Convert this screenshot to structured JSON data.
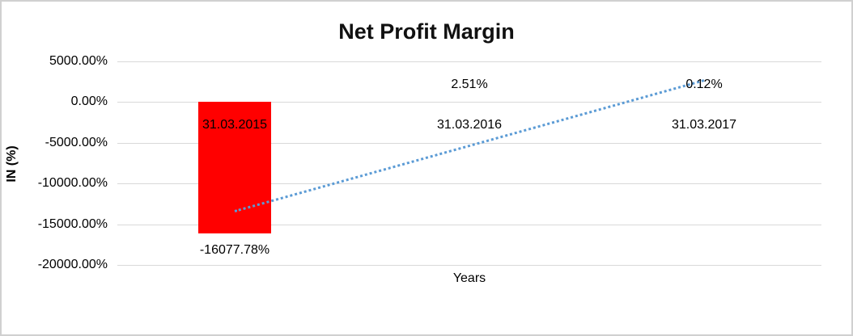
{
  "chart_data": {
    "type": "bar",
    "title": "Net Profit Margin",
    "xlabel": "Years",
    "ylabel": "IN (%)",
    "categories": [
      "31.03.2015",
      "31.03.2016",
      "31.03.2017"
    ],
    "values": [
      -16077.78,
      2.51,
      0.12
    ],
    "data_labels": [
      "-16077.78%",
      "2.51%",
      "0.12%"
    ],
    "y_tick_labels": [
      "5000.00%",
      "0.00%",
      "-5000.00%",
      "-10000.00%",
      "-15000.00%",
      "-20000.00%"
    ],
    "y_tick_values": [
      5000,
      0,
      -5000,
      -10000,
      -15000,
      -20000
    ],
    "ylim": [
      -20000,
      5000
    ],
    "grid": true,
    "legend": "none",
    "bar_color": "#FF0000",
    "trendline": {
      "type": "linear",
      "style": "dotted",
      "color": "#5B9BD5",
      "start_value_pct": -13400,
      "end_value_pct": 2680
    }
  }
}
